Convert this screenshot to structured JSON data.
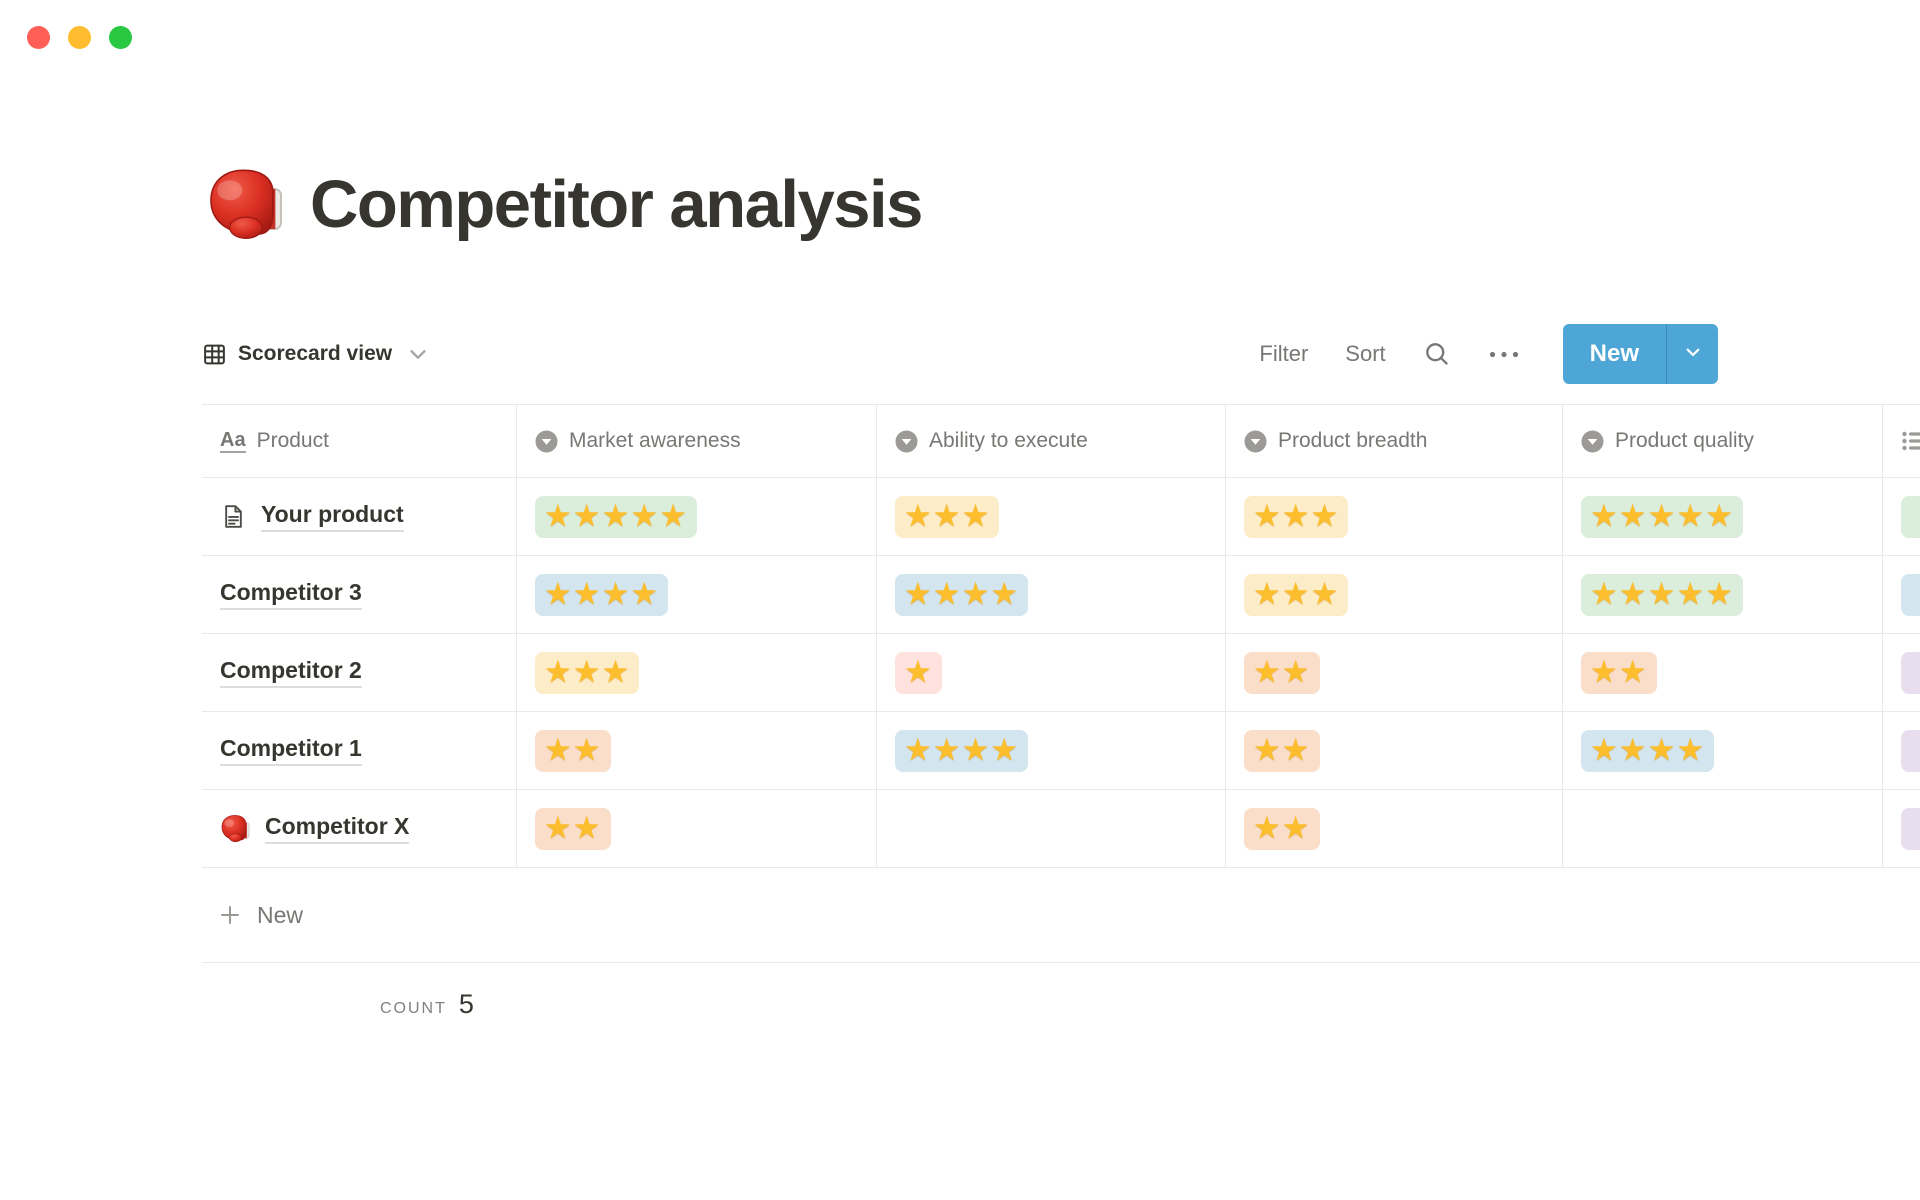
{
  "window": {
    "traffic_lights": [
      {
        "name": "close-button",
        "color": "#ff5f57"
      },
      {
        "name": "minimize-button",
        "color": "#febc2e"
      },
      {
        "name": "zoom-button",
        "color": "#28c840"
      }
    ]
  },
  "page": {
    "icon": "boxing-glove",
    "title": "Competitor analysis"
  },
  "toolbar": {
    "view_label": "Scorecard view",
    "filter_label": "Filter",
    "sort_label": "Sort",
    "new_label": "New",
    "accent_color": "#4da6d6"
  },
  "colors": {
    "green": "#dbeddb",
    "yellow": "#fdecc8",
    "blue": "#d3e5ef",
    "orange": "#fadec9",
    "red": "#ffe2dd",
    "purple": "#e8deee"
  },
  "star_glyph": "★",
  "table": {
    "columns": [
      {
        "label": "Product",
        "type": "title",
        "icon": "text-property-icon"
      },
      {
        "label": "Market awareness",
        "type": "select",
        "icon": "select-property-icon"
      },
      {
        "label": "Ability to execute",
        "type": "select",
        "icon": "select-property-icon"
      },
      {
        "label": "Product breadth",
        "type": "select",
        "icon": "select-property-icon"
      },
      {
        "label": "Product quality",
        "type": "select",
        "icon": "select-property-icon"
      },
      {
        "label": "",
        "type": "list",
        "icon": "list-property-icon"
      }
    ],
    "rows": [
      {
        "icon": "page-icon",
        "name": "Your product",
        "ratings": [
          {
            "stars": 5,
            "color": "green"
          },
          {
            "stars": 3,
            "color": "yellow"
          },
          {
            "stars": 3,
            "color": "yellow"
          },
          {
            "stars": 5,
            "color": "green"
          }
        ],
        "partial": "green"
      },
      {
        "icon": null,
        "name": "Competitor 3",
        "ratings": [
          {
            "stars": 4,
            "color": "blue"
          },
          {
            "stars": 4,
            "color": "blue"
          },
          {
            "stars": 3,
            "color": "yellow"
          },
          {
            "stars": 5,
            "color": "green"
          }
        ],
        "partial": "blue"
      },
      {
        "icon": null,
        "name": "Competitor 2",
        "ratings": [
          {
            "stars": 3,
            "color": "yellow"
          },
          {
            "stars": 1,
            "color": "red"
          },
          {
            "stars": 2,
            "color": "orange"
          },
          {
            "stars": 2,
            "color": "orange"
          }
        ],
        "partial": "purple"
      },
      {
        "icon": null,
        "name": "Competitor 1",
        "ratings": [
          {
            "stars": 2,
            "color": "orange"
          },
          {
            "stars": 4,
            "color": "blue"
          },
          {
            "stars": 2,
            "color": "orange"
          },
          {
            "stars": 4,
            "color": "blue"
          }
        ],
        "partial": "purple"
      },
      {
        "icon": "boxing-glove-icon",
        "name": "Competitor X",
        "ratings": [
          {
            "stars": 2,
            "color": "orange"
          },
          null,
          {
            "stars": 2,
            "color": "orange"
          },
          null
        ],
        "partial": "purple"
      }
    ],
    "new_row_label": "New",
    "footer": {
      "count_label": "COUNT",
      "count_value": "5"
    }
  }
}
